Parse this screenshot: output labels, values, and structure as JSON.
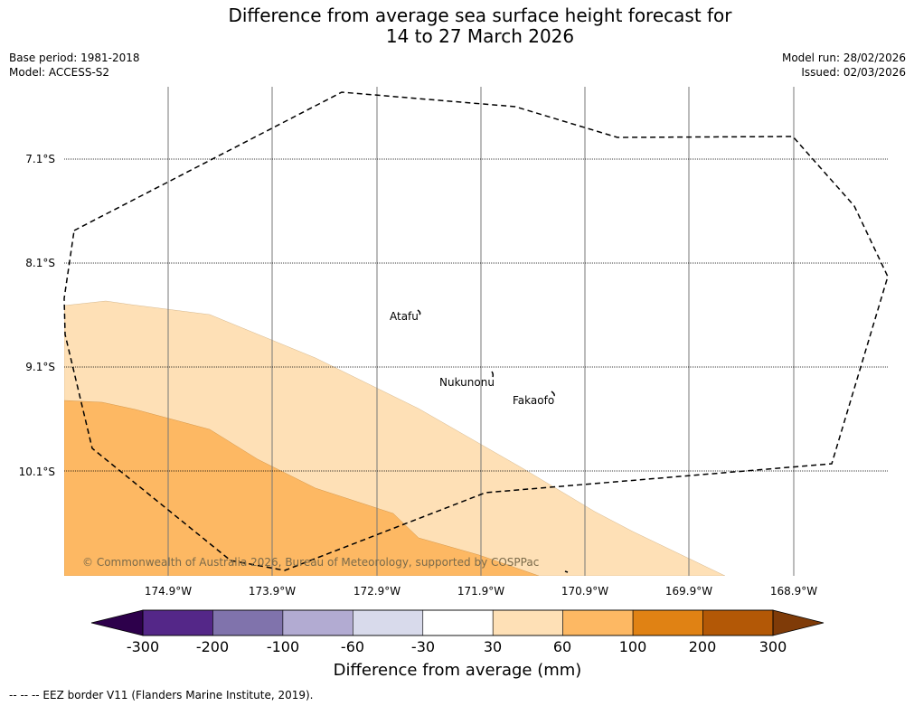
{
  "title": {
    "line1": "Difference from average sea surface height forecast for",
    "line2": "14 to 27 March 2026"
  },
  "meta": {
    "base_period": "Base period: 1981-2018",
    "model": "Model: ACCESS-S2",
    "model_run": "Model run: 28/02/2026",
    "issued": "Issued: 02/03/2026"
  },
  "map": {
    "latitude_labels": [
      "7.1°S",
      "8.1°S",
      "9.1°S",
      "10.1°S"
    ],
    "longitude_labels": [
      "174.9°W",
      "173.9°W",
      "172.9°W",
      "171.9°W",
      "170.9°W",
      "169.9°W",
      "168.9°W"
    ],
    "places": [
      {
        "name": "Atafu"
      },
      {
        "name": "Nukunonu"
      },
      {
        "name": "Fakaofo"
      }
    ],
    "copyright": "© Commonwealth of Australia 2026, Bureau of Meteorology, supported by COSPPac"
  },
  "colorbar": {
    "label": "Difference from average (mm)",
    "tick_labels": [
      "-300",
      "-200",
      "-100",
      "-60",
      "-30",
      "30",
      "60",
      "100",
      "200",
      "300"
    ],
    "under_color": "#2d004b",
    "over_color": "#7f3b08",
    "bin_colors": [
      "#542788",
      "#8073ac",
      "#b2abd2",
      "#d8daeb",
      "#ffffff",
      "#fee0b6",
      "#fdb863",
      "#e08214",
      "#b35806"
    ]
  },
  "footer": {
    "legend_text": "-- -- -- EEZ border V11 (Flanders Marine Institute, 2019)."
  },
  "colors": {
    "band_60_100": "#fdb863",
    "band_30_60": "#fee0b6"
  }
}
